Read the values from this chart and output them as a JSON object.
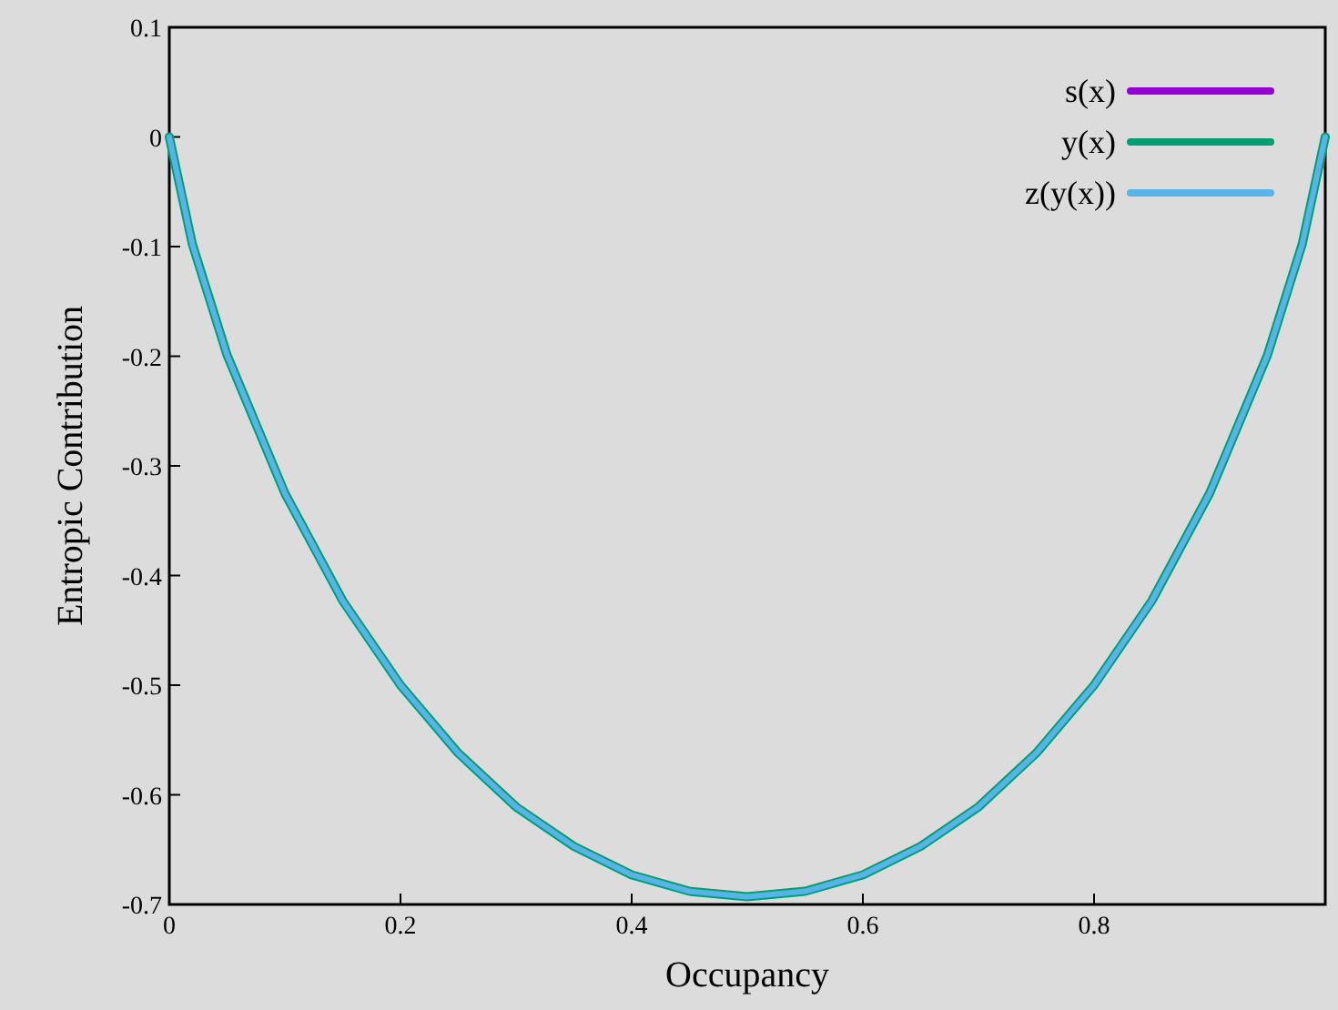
{
  "chart_data": {
    "type": "line",
    "xlabel": "Occupancy",
    "ylabel": "Entropic Contribution",
    "x": [
      0,
      0.02,
      0.05,
      0.1,
      0.15,
      0.2,
      0.25,
      0.3,
      0.35,
      0.4,
      0.45,
      0.5,
      0.55,
      0.6,
      0.65,
      0.7,
      0.75,
      0.8,
      0.85,
      0.9,
      0.95,
      0.98,
      1
    ],
    "series": [
      {
        "name": "s(x)",
        "color": "#9400d3",
        "values": [
          null,
          null,
          null,
          null,
          null,
          null,
          null,
          null,
          null,
          null,
          null,
          null,
          null,
          null,
          null,
          null,
          null,
          null,
          null,
          null,
          null,
          null,
          null
        ]
      },
      {
        "name": "y(x)",
        "color": "#009e73",
        "values": [
          0,
          -0.098,
          -0.199,
          -0.325,
          -0.423,
          -0.5,
          -0.562,
          -0.611,
          -0.647,
          -0.673,
          -0.688,
          -0.693,
          -0.688,
          -0.673,
          -0.647,
          -0.611,
          -0.562,
          -0.5,
          -0.423,
          -0.325,
          -0.199,
          -0.098,
          0
        ]
      },
      {
        "name": "z(y(x))",
        "color": "#56b4e9",
        "values": [
          0,
          -0.098,
          -0.199,
          -0.325,
          -0.423,
          -0.5,
          -0.562,
          -0.611,
          -0.647,
          -0.673,
          -0.688,
          -0.693,
          -0.688,
          -0.673,
          -0.647,
          -0.611,
          -0.562,
          -0.5,
          -0.423,
          -0.325,
          -0.199,
          -0.098,
          0
        ]
      }
    ],
    "xlim": [
      0,
      1
    ],
    "xticks": [
      0,
      0.2,
      0.4,
      0.6,
      0.8
    ],
    "ylim": [
      -0.7,
      0.1
    ],
    "yticks": [
      -0.7,
      -0.6,
      -0.5,
      -0.4,
      -0.3,
      -0.2,
      -0.1,
      0,
      0.1
    ],
    "legend": "top right",
    "grid": false,
    "marker": "none",
    "line_style": "solid"
  }
}
